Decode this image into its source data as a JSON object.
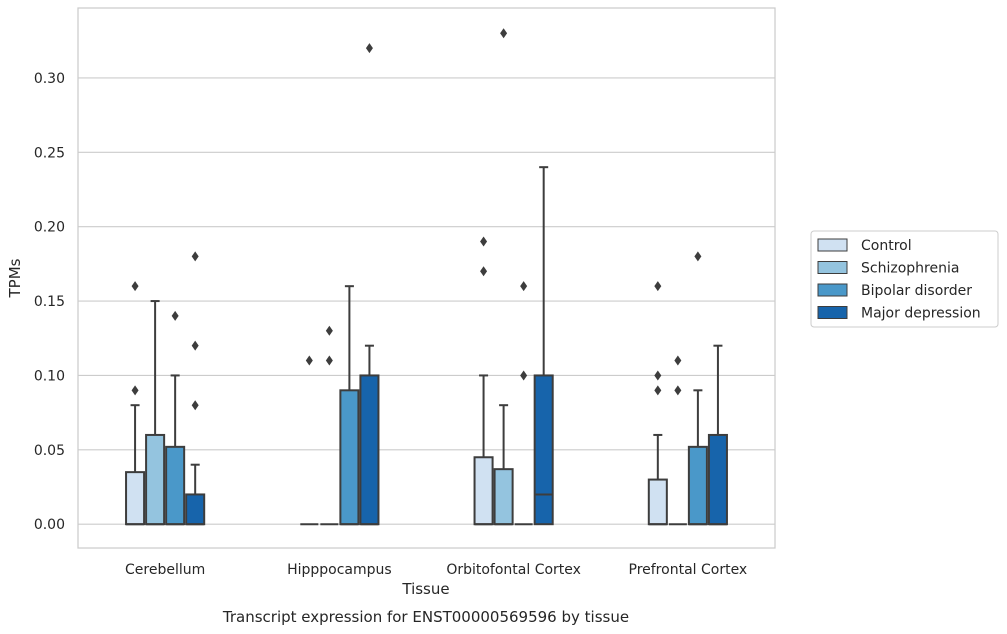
{
  "chart_data": {
    "type": "box",
    "xlabel": "Tissue",
    "ylabel": "TPMs",
    "caption": "Transcript expression for ENST00000569596 by tissue",
    "ylim": [
      -0.016,
      0.347
    ],
    "y_ticks": [
      "0.00",
      "0.05",
      "0.10",
      "0.15",
      "0.20",
      "0.25",
      "0.30"
    ],
    "y_tick_values": [
      0,
      0.05,
      0.1,
      0.15,
      0.2,
      0.25,
      0.3
    ],
    "grid": true,
    "legend_position": "right",
    "categories": [
      "Cerebellum",
      "Hipppocampus",
      "Orbitofontal Cortex",
      "Prefrontal Cortex"
    ],
    "series": [
      {
        "name": "Control",
        "color": "#d0e1f2",
        "boxes": [
          {
            "q1": 0,
            "median": 0,
            "q3": 0.035,
            "whisker_low": 0,
            "whisker_high": 0.08,
            "outliers": [
              0.09,
              0.16
            ]
          },
          {
            "q1": 0,
            "median": 0,
            "q3": 0,
            "whisker_low": 0,
            "whisker_high": 0,
            "outliers": [
              0.11
            ]
          },
          {
            "q1": 0,
            "median": 0,
            "q3": 0.045,
            "whisker_low": 0,
            "whisker_high": 0.1,
            "outliers": [
              0.17,
              0.19
            ]
          },
          {
            "q1": 0,
            "median": 0,
            "q3": 0.03,
            "whisker_low": 0,
            "whisker_high": 0.06,
            "outliers": [
              0.09,
              0.1,
              0.16
            ]
          }
        ]
      },
      {
        "name": "Schizophrenia",
        "color": "#94c4df",
        "boxes": [
          {
            "q1": 0,
            "median": 0,
            "q3": 0.06,
            "whisker_low": 0,
            "whisker_high": 0.15,
            "outliers": []
          },
          {
            "q1": 0,
            "median": 0,
            "q3": 0,
            "whisker_low": 0,
            "whisker_high": 0,
            "outliers": [
              0.11,
              0.13
            ]
          },
          {
            "q1": 0,
            "median": 0,
            "q3": 0.037,
            "whisker_low": 0,
            "whisker_high": 0.08,
            "outliers": [
              0.33
            ]
          },
          {
            "q1": 0,
            "median": 0,
            "q3": 0,
            "whisker_low": 0,
            "whisker_high": 0,
            "outliers": [
              0.09,
              0.11
            ]
          }
        ]
      },
      {
        "name": "Bipolar disorder",
        "color": "#4a98c9",
        "boxes": [
          {
            "q1": 0,
            "median": 0,
            "q3": 0.052,
            "whisker_low": 0,
            "whisker_high": 0.1,
            "outliers": [
              0.14
            ]
          },
          {
            "q1": 0,
            "median": 0,
            "q3": 0.09,
            "whisker_low": 0,
            "whisker_high": 0.16,
            "outliers": []
          },
          {
            "q1": 0,
            "median": 0,
            "q3": 0,
            "whisker_low": 0,
            "whisker_high": 0,
            "outliers": [
              0.1,
              0.16
            ]
          },
          {
            "q1": 0,
            "median": 0,
            "q3": 0.052,
            "whisker_low": 0,
            "whisker_high": 0.09,
            "outliers": [
              0.18
            ]
          }
        ]
      },
      {
        "name": "Major depression",
        "color": "#1764ab",
        "boxes": [
          {
            "q1": 0,
            "median": 0,
            "q3": 0.02,
            "whisker_low": 0,
            "whisker_high": 0.04,
            "outliers": [
              0.08,
              0.12,
              0.18
            ]
          },
          {
            "q1": 0,
            "median": 0,
            "q3": 0.1,
            "whisker_low": 0,
            "whisker_high": 0.12,
            "outliers": [
              0.32
            ]
          },
          {
            "q1": 0,
            "median": 0.02,
            "q3": 0.1,
            "whisker_low": 0,
            "whisker_high": 0.24,
            "outliers": []
          },
          {
            "q1": 0,
            "median": 0,
            "q3": 0.06,
            "whisker_low": 0,
            "whisker_high": 0.12,
            "outliers": []
          }
        ]
      }
    ]
  }
}
